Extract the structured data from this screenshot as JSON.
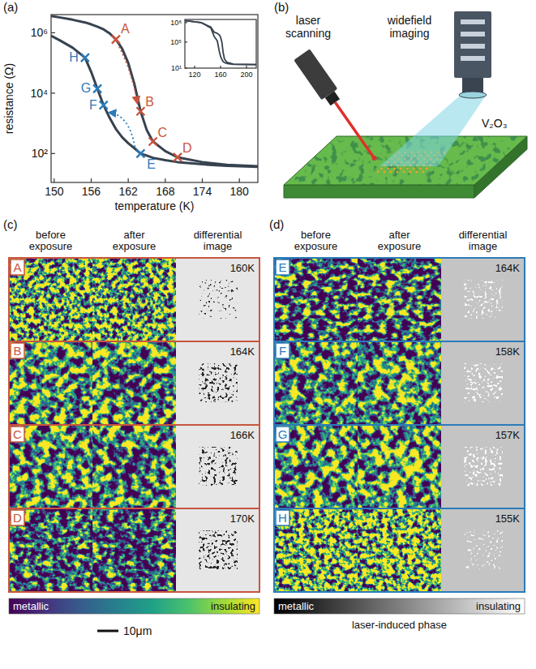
{
  "panel_labels": [
    "(a)",
    "(b)",
    "(c)",
    "(d)"
  ],
  "chart_data": [
    {
      "type": "line",
      "x_label": "temperature (K)",
      "y_label": "resistance (Ω)",
      "log": "y",
      "xlim": [
        149.5,
        183
      ],
      "ylim": [
        11,
        4000000
      ],
      "xticks": [
        150,
        156,
        162,
        168,
        174,
        180
      ],
      "yticks": [
        {
          "value": 100,
          "label": "10²"
        },
        {
          "value": 10000,
          "label": "10⁴"
        },
        {
          "value": 1000000,
          "label": "10⁶"
        }
      ],
      "x": [
        149.5,
        151,
        153,
        155,
        156,
        157,
        158,
        159,
        160,
        161,
        162,
        163,
        164,
        165,
        166,
        168,
        170,
        174,
        178,
        183
      ],
      "series": [
        {
          "color": "#37424f",
          "values": [
            3600000,
            3200000,
            2700000,
            2200000,
            1900000,
            1600000,
            1300000,
            950000,
            600000,
            300000,
            100000,
            20000,
            2500,
            600,
            250,
            120,
            75,
            52,
            42,
            38
          ]
        },
        {
          "color": "#37424f",
          "values": [
            800000,
            550000,
            320000,
            150000,
            50000,
            14000,
            4000,
            1500,
            650,
            350,
            220,
            150,
            100,
            85,
            72,
            60,
            52,
            44,
            39,
            36
          ]
        }
      ],
      "annotations": [
        {
          "text": "A",
          "x": 160,
          "y": 600000,
          "color": "#c9553e"
        },
        {
          "text": "B",
          "x": 164,
          "y": 2500,
          "color": "#c9553e"
        },
        {
          "text": "C",
          "x": 166,
          "y": 250,
          "color": "#c9553e"
        },
        {
          "text": "D",
          "x": 170,
          "y": 75,
          "color": "#c9553e"
        },
        {
          "text": "E",
          "x": 164,
          "y": 100,
          "color": "#2b7bb9"
        },
        {
          "text": "F",
          "x": 158,
          "y": 4000,
          "color": "#2b7bb9"
        },
        {
          "text": "G",
          "x": 157,
          "y": 14000,
          "color": "#2b7bb9"
        },
        {
          "text": "H",
          "x": 155,
          "y": 150000,
          "color": "#2b7bb9"
        }
      ]
    },
    {
      "type": "line",
      "log": "y",
      "xlim": [
        105,
        215
      ],
      "ylim": [
        10,
        300000000
      ],
      "xticks": [
        120,
        160,
        200
      ],
      "yticks": [
        {
          "value": 10,
          "label": "10¹"
        },
        {
          "value": 100000,
          "label": "10⁵"
        },
        {
          "value": 100000000,
          "label": "10⁸"
        }
      ],
      "x": [
        105,
        130,
        145,
        150,
        155,
        158,
        160,
        162,
        164,
        166,
        170,
        180,
        215
      ],
      "series": [
        {
          "color": "#37424f",
          "values": [
            200000000,
            100000000,
            20000000,
            3400000,
            2200000,
            1300000,
            600000,
            100000,
            2500,
            250,
            75,
            40,
            35
          ]
        },
        {
          "color": "#37424f",
          "values": [
            200000000,
            100000000,
            15000000,
            800000,
            150000,
            4000,
            650,
            220,
            100,
            72,
            52,
            38,
            35
          ]
        }
      ]
    }
  ],
  "diagram": {
    "laser": "laser scanning",
    "camera": "widefield imaging",
    "sample": "V₂O₃"
  },
  "image_panels": [
    {
      "color": "#c9553e",
      "column_heads": [
        "before exposure",
        "after exposure",
        "differential image"
      ],
      "rows": [
        {
          "letter": "A",
          "temperature": "160K"
        },
        {
          "letter": "B",
          "temperature": "164K"
        },
        {
          "letter": "C",
          "temperature": "166K"
        },
        {
          "letter": "D",
          "temperature": "170K"
        }
      ],
      "colorbar": {
        "low": "metallic",
        "high": "insulating"
      }
    },
    {
      "color": "#2b7bb9",
      "column_heads": [
        "before exposure",
        "after exposure",
        "differential image"
      ],
      "rows": [
        {
          "letter": "E",
          "temperature": "164K"
        },
        {
          "letter": "F",
          "temperature": "158K"
        },
        {
          "letter": "G",
          "temperature": "157K"
        },
        {
          "letter": "H",
          "temperature": "155K"
        }
      ],
      "colorbar": {
        "low": "metallic",
        "high": "insulating",
        "title": "laser-induced phase"
      }
    }
  ],
  "scale_bar": "10μm"
}
